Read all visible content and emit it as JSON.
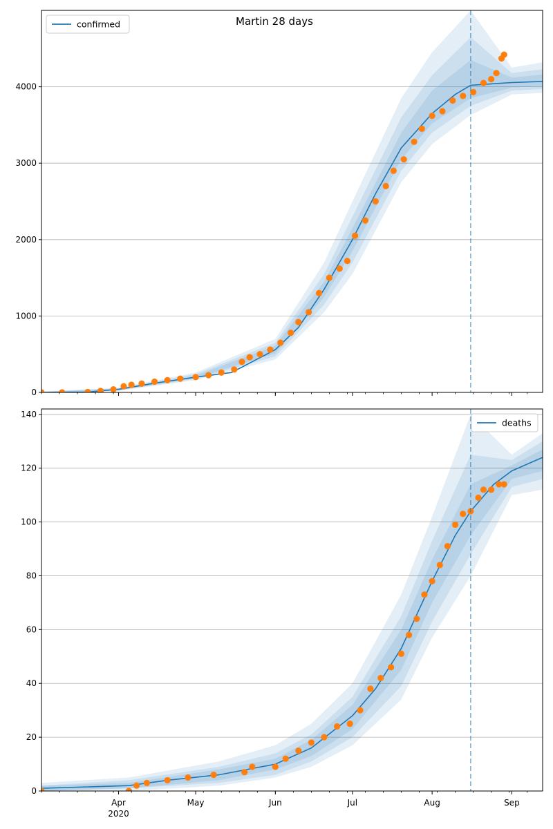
{
  "figure_title": "Martin 28 days",
  "colors": {
    "model": "#1f77b4",
    "observed": "#ff7f0e",
    "band": "#1f77b4",
    "grid": "#b0b0b0",
    "forecast_line": "#1f77b4"
  },
  "x_axis": {
    "start": "2020-03-02",
    "end": "2020-09-13",
    "month_ticks": [
      {
        "date": "2020-04-01",
        "label": "Apr",
        "sublabel": "2020"
      },
      {
        "date": "2020-05-01",
        "label": "May",
        "sublabel": ""
      },
      {
        "date": "2020-06-01",
        "label": "Jun",
        "sublabel": ""
      },
      {
        "date": "2020-07-01",
        "label": "Jul",
        "sublabel": ""
      },
      {
        "date": "2020-08-01",
        "label": "Aug",
        "sublabel": ""
      },
      {
        "date": "2020-09-01",
        "label": "Sep",
        "sublabel": ""
      }
    ],
    "minor_tick_interval_days": 7
  },
  "forecast_start": "2020-08-16",
  "chart_data": [
    {
      "type": "line",
      "legend": {
        "label": "confirmed",
        "placement": "top-left"
      },
      "ylim": [
        0,
        5000
      ],
      "yticks": [
        0,
        1000,
        2000,
        3000,
        4000
      ],
      "grid": "y",
      "model_series": {
        "name": "confirmed",
        "x": [
          "2020-03-02",
          "2020-03-20",
          "2020-04-01",
          "2020-04-15",
          "2020-05-01",
          "2020-05-15",
          "2020-06-01",
          "2020-06-10",
          "2020-06-20",
          "2020-07-01",
          "2020-07-10",
          "2020-07-20",
          "2020-08-01",
          "2020-08-10",
          "2020-08-16",
          "2020-08-25",
          "2020-09-01",
          "2020-09-13"
        ],
        "y": [
          0,
          5,
          40,
          120,
          200,
          260,
          560,
          850,
          1350,
          2000,
          2600,
          3200,
          3650,
          3900,
          4020,
          4040,
          4055,
          4070
        ]
      },
      "bands": [
        {
          "x": [
            "2020-03-02",
            "2020-04-01",
            "2020-05-01",
            "2020-06-01",
            "2020-06-20",
            "2020-07-01",
            "2020-07-20",
            "2020-08-01",
            "2020-08-16",
            "2020-09-01",
            "2020-09-13"
          ],
          "lower": [
            0,
            20,
            160,
            430,
            1050,
            1550,
            2750,
            3250,
            3630,
            3900,
            3920
          ],
          "upper": [
            10,
            60,
            260,
            700,
            1700,
            2500,
            3850,
            4450,
            5000,
            4250,
            4320
          ]
        },
        {
          "x": [
            "2020-03-02",
            "2020-04-01",
            "2020-05-01",
            "2020-06-01",
            "2020-06-20",
            "2020-07-01",
            "2020-07-20",
            "2020-08-01",
            "2020-08-16",
            "2020-09-01",
            "2020-09-13"
          ],
          "lower": [
            0,
            25,
            175,
            470,
            1150,
            1700,
            2900,
            3400,
            3750,
            3950,
            3970
          ],
          "upper": [
            8,
            55,
            240,
            650,
            1550,
            2300,
            3600,
            4150,
            4650,
            4180,
            4230
          ]
        },
        {
          "x": [
            "2020-03-02",
            "2020-04-01",
            "2020-05-01",
            "2020-06-01",
            "2020-06-20",
            "2020-07-01",
            "2020-07-20",
            "2020-08-01",
            "2020-08-16",
            "2020-09-01",
            "2020-09-13"
          ],
          "lower": [
            0,
            30,
            185,
            510,
            1250,
            1850,
            3050,
            3520,
            3850,
            3990,
            4010
          ],
          "upper": [
            6,
            50,
            220,
            610,
            1450,
            2150,
            3400,
            3950,
            4350,
            4120,
            4160
          ]
        }
      ],
      "observed_series": {
        "name": "observed",
        "x": [
          "2020-03-02",
          "2020-03-10",
          "2020-03-20",
          "2020-03-25",
          "2020-03-30",
          "2020-04-03",
          "2020-04-06",
          "2020-04-10",
          "2020-04-15",
          "2020-04-20",
          "2020-04-25",
          "2020-05-01",
          "2020-05-06",
          "2020-05-11",
          "2020-05-16",
          "2020-05-19",
          "2020-05-22",
          "2020-05-26",
          "2020-05-30",
          "2020-06-03",
          "2020-06-07",
          "2020-06-10",
          "2020-06-14",
          "2020-06-18",
          "2020-06-22",
          "2020-06-26",
          "2020-06-29",
          "2020-07-02",
          "2020-07-06",
          "2020-07-10",
          "2020-07-14",
          "2020-07-17",
          "2020-07-21",
          "2020-07-25",
          "2020-07-28",
          "2020-08-01",
          "2020-08-05",
          "2020-08-09",
          "2020-08-13",
          "2020-08-17",
          "2020-08-21",
          "2020-08-24",
          "2020-08-26",
          "2020-08-28",
          "2020-08-29"
        ],
        "y": [
          0,
          0,
          5,
          20,
          40,
          80,
          100,
          115,
          140,
          160,
          180,
          200,
          225,
          260,
          300,
          400,
          460,
          500,
          560,
          650,
          780,
          920,
          1050,
          1300,
          1500,
          1620,
          1720,
          2050,
          2250,
          2500,
          2700,
          2900,
          3050,
          3280,
          3450,
          3620,
          3680,
          3820,
          3880,
          3930,
          4050,
          4100,
          4180,
          4370,
          4420
        ]
      }
    },
    {
      "type": "line",
      "legend": {
        "label": "deaths",
        "placement": "top-right"
      },
      "ylim": [
        0,
        142
      ],
      "yticks": [
        0,
        20,
        40,
        60,
        80,
        100,
        120,
        140
      ],
      "grid": "y",
      "model_series": {
        "name": "deaths",
        "x": [
          "2020-03-02",
          "2020-04-05",
          "2020-04-20",
          "2020-05-10",
          "2020-06-01",
          "2020-06-15",
          "2020-07-01",
          "2020-07-10",
          "2020-07-20",
          "2020-08-01",
          "2020-08-10",
          "2020-08-16",
          "2020-08-25",
          "2020-09-01",
          "2020-09-13"
        ],
        "y": [
          1,
          2,
          4,
          6,
          10,
          16,
          28,
          38,
          53,
          78,
          95,
          104,
          114,
          119,
          124
        ]
      },
      "bands": [
        {
          "x": [
            "2020-03-02",
            "2020-04-05",
            "2020-05-10",
            "2020-06-01",
            "2020-06-15",
            "2020-07-01",
            "2020-07-20",
            "2020-08-01",
            "2020-08-16",
            "2020-09-01",
            "2020-09-13"
          ],
          "lower": [
            0,
            0,
            2,
            5,
            9,
            17,
            34,
            57,
            80,
            110,
            112
          ],
          "upper": [
            3,
            5,
            11,
            17,
            25,
            40,
            73,
            102,
            140,
            125,
            133
          ]
        },
        {
          "x": [
            "2020-03-02",
            "2020-04-05",
            "2020-05-10",
            "2020-06-01",
            "2020-06-15",
            "2020-07-01",
            "2020-07-20",
            "2020-08-01",
            "2020-08-16",
            "2020-09-01",
            "2020-09-13"
          ],
          "lower": [
            0,
            1,
            3,
            6,
            11,
            20,
            39,
            63,
            88,
            113,
            116
          ],
          "upper": [
            2,
            4,
            9,
            14,
            21,
            35,
            65,
            93,
            125,
            123,
            130
          ]
        },
        {
          "x": [
            "2020-03-02",
            "2020-04-05",
            "2020-05-10",
            "2020-06-01",
            "2020-06-15",
            "2020-07-01",
            "2020-07-20",
            "2020-08-01",
            "2020-08-16",
            "2020-09-01",
            "2020-09-13"
          ],
          "lower": [
            0,
            1,
            4,
            8,
            13,
            23,
            45,
            70,
            95,
            116,
            119
          ],
          "upper": [
            2,
            3,
            8,
            12,
            19,
            32,
            60,
            86,
            114,
            121,
            127
          ]
        }
      ],
      "observed_series": {
        "name": "observed",
        "x": [
          "2020-03-02",
          "2020-04-05",
          "2020-04-08",
          "2020-04-12",
          "2020-04-20",
          "2020-04-28",
          "2020-05-08",
          "2020-05-20",
          "2020-05-23",
          "2020-06-01",
          "2020-06-05",
          "2020-06-10",
          "2020-06-15",
          "2020-06-20",
          "2020-06-25",
          "2020-06-30",
          "2020-07-04",
          "2020-07-08",
          "2020-07-12",
          "2020-07-16",
          "2020-07-20",
          "2020-07-23",
          "2020-07-26",
          "2020-07-29",
          "2020-08-01",
          "2020-08-04",
          "2020-08-07",
          "2020-08-10",
          "2020-08-13",
          "2020-08-16",
          "2020-08-19",
          "2020-08-21",
          "2020-08-24",
          "2020-08-27",
          "2020-08-29"
        ],
        "y": [
          0,
          0,
          2,
          3,
          4,
          5,
          6,
          7,
          9,
          9,
          12,
          15,
          18,
          20,
          24,
          25,
          30,
          38,
          42,
          46,
          51,
          58,
          64,
          73,
          78,
          84,
          91,
          99,
          103,
          104,
          109,
          112,
          112,
          114,
          114
        ]
      }
    }
  ]
}
